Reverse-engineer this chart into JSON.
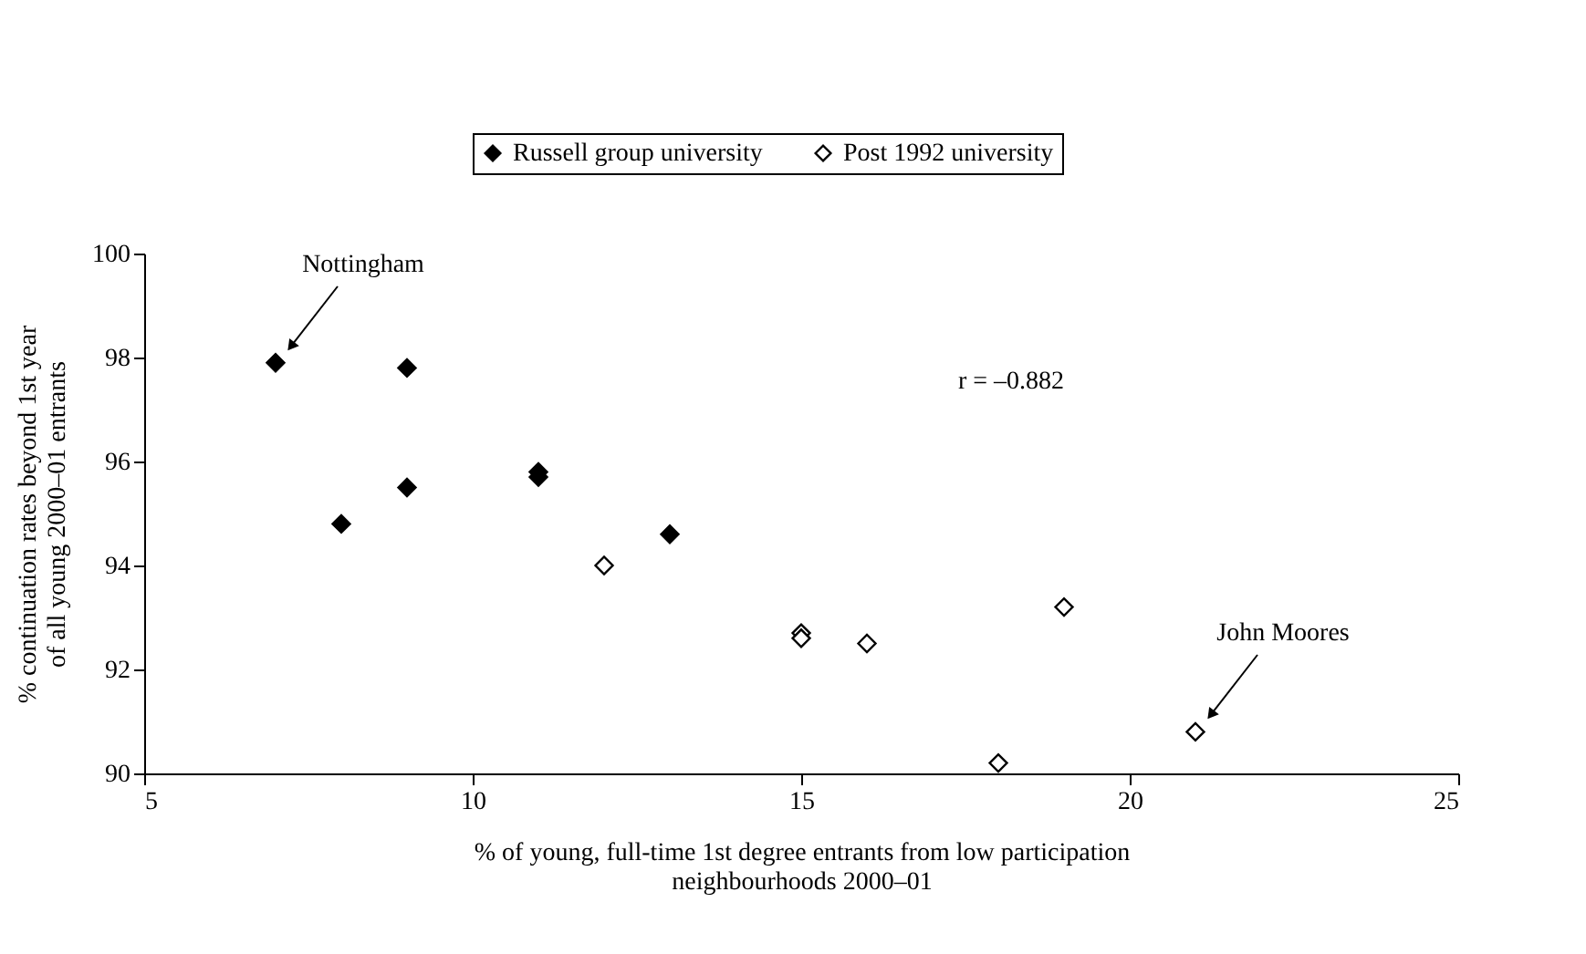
{
  "chart_data": {
    "type": "scatter",
    "xlabel": "% of young, full-time 1st degree entrants from low participation neighbourhoods 2000–01",
    "ylabel": "% continuation rates beyond 1st year of all young 2000–01 entrants",
    "xlim": [
      5,
      25
    ],
    "xticks": [
      5,
      10,
      15,
      20,
      25
    ],
    "ylim": [
      90,
      100
    ],
    "yticks": [
      90,
      92,
      94,
      96,
      98,
      100
    ],
    "grid": false,
    "legend": "top",
    "marker": "diamond",
    "series": [
      {
        "name": "Russell group university",
        "color": "#000000",
        "x": [
          7,
          9,
          9,
          8,
          11,
          11,
          13
        ],
        "values": [
          97.9,
          97.8,
          95.5,
          94.8,
          95.8,
          95.7,
          94.6
        ]
      },
      {
        "name": "Post 1992 university",
        "color": "#ffffff",
        "x": [
          12,
          15,
          15,
          16,
          19,
          18,
          21
        ],
        "values": [
          94.0,
          92.7,
          92.6,
          92.5,
          93.2,
          90.2,
          90.8
        ]
      }
    ],
    "annotations": [
      "Nottingham",
      "John Moores",
      "r = –0.882"
    ]
  }
}
